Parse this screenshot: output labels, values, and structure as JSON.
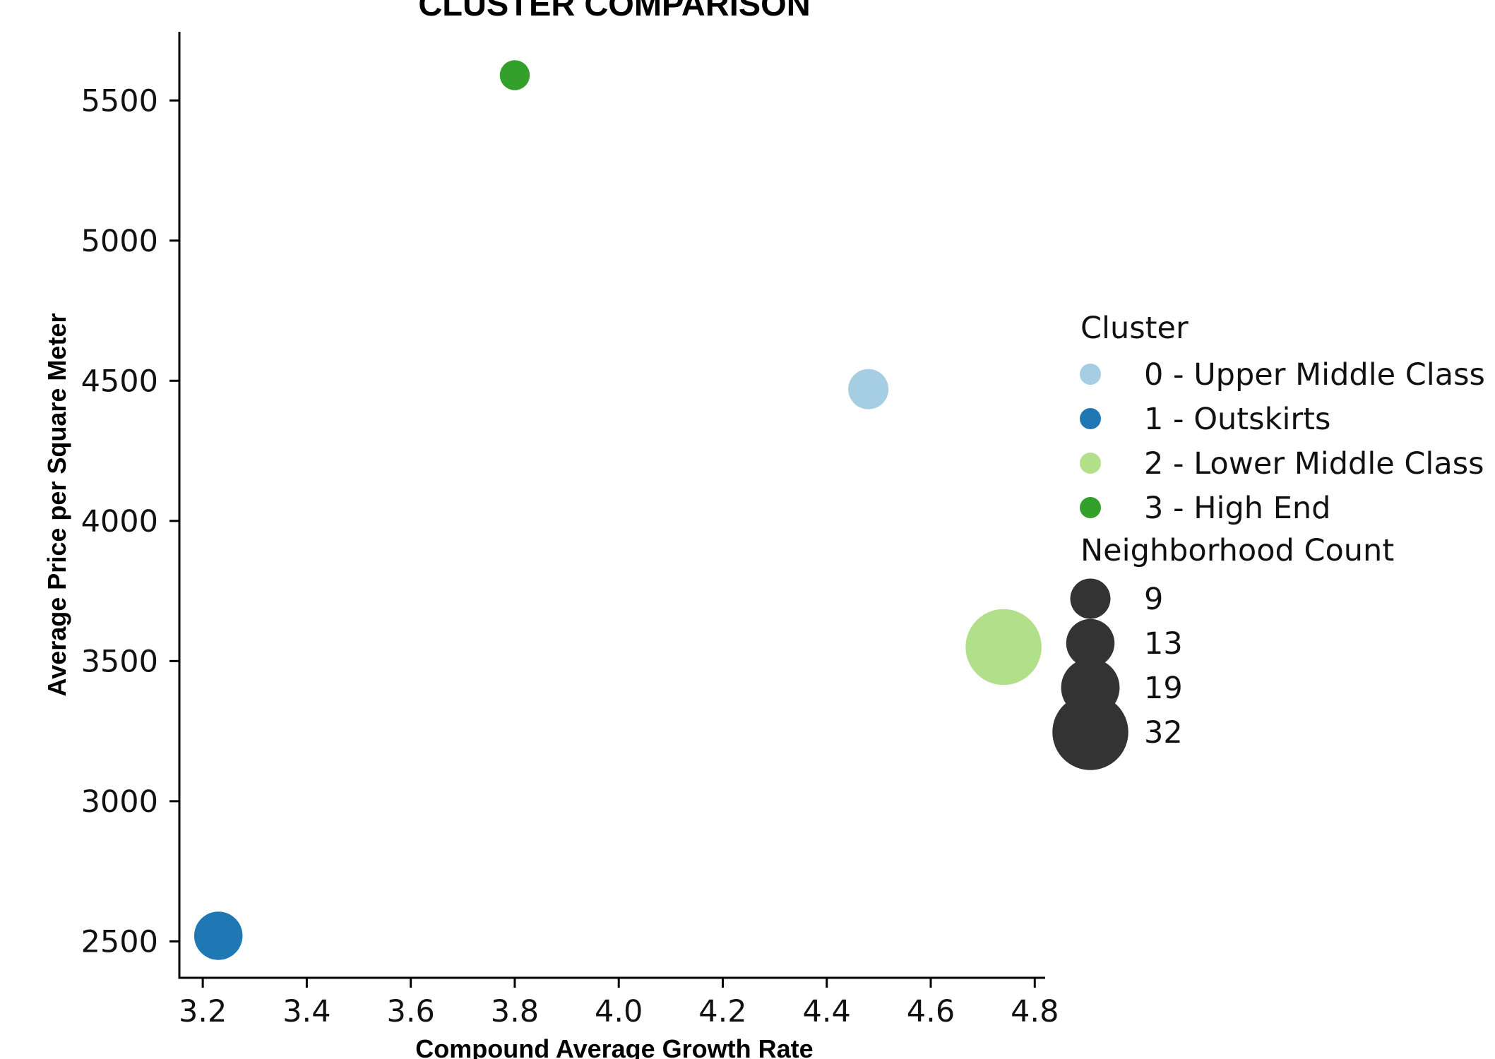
{
  "chart_data": {
    "type": "scatter",
    "title": "CLUSTER COMPARISON",
    "xlabel": "Compound Average Growth Rate",
    "ylabel": "Average Price per Square Meter",
    "xlim": [
      3.155,
      4.82
    ],
    "ylim": [
      2370,
      5745
    ],
    "xticks": [
      {
        "value": 3.2,
        "label": "3.2"
      },
      {
        "value": 3.4,
        "label": "3.4"
      },
      {
        "value": 3.6,
        "label": "3.6"
      },
      {
        "value": 3.8,
        "label": "3.8"
      },
      {
        "value": 4.0,
        "label": "4.0"
      },
      {
        "value": 4.2,
        "label": "4.2"
      },
      {
        "value": 4.4,
        "label": "4.4"
      },
      {
        "value": 4.6,
        "label": "4.6"
      },
      {
        "value": 4.8,
        "label": "4.8"
      }
    ],
    "yticks": [
      {
        "value": 2500,
        "label": "2500"
      },
      {
        "value": 3000,
        "label": "3000"
      },
      {
        "value": 3500,
        "label": "3500"
      },
      {
        "value": 4000,
        "label": "4000"
      },
      {
        "value": 4500,
        "label": "4500"
      },
      {
        "value": 5000,
        "label": "5000"
      },
      {
        "value": 5500,
        "label": "5500"
      }
    ],
    "grid": false,
    "legend_position": "right",
    "points": [
      {
        "cluster": "0 - Upper Middle Class",
        "x": 4.48,
        "y": 4470,
        "count": 9,
        "color": "#a6cee3"
      },
      {
        "cluster": "1 - Outskirts",
        "x": 3.23,
        "y": 2520,
        "count": 13,
        "color": "#1f78b4"
      },
      {
        "cluster": "2 - Lower Middle Class",
        "x": 4.74,
        "y": 3550,
        "count": 32,
        "color": "#b2df8a"
      },
      {
        "cluster": "3 - High End",
        "x": 3.8,
        "y": 5590,
        "count": 5,
        "color": "#33a02c"
      }
    ],
    "legend": {
      "hue_title": "Cluster",
      "hue_entries": [
        {
          "label": "0 - Upper Middle Class",
          "color": "#a6cee3"
        },
        {
          "label": "1 - Outskirts",
          "color": "#1f78b4"
        },
        {
          "label": "2 - Lower Middle Class",
          "color": "#b2df8a"
        },
        {
          "label": "3 - High End",
          "color": "#33a02c"
        }
      ],
      "size_title": "Neighborhood Count",
      "size_entries": [
        {
          "label": "9",
          "count": 9
        },
        {
          "label": "13",
          "count": 13
        },
        {
          "label": "19",
          "count": 19
        },
        {
          "label": "32",
          "count": 32
        }
      ],
      "size_marker_color": "#333333"
    }
  }
}
